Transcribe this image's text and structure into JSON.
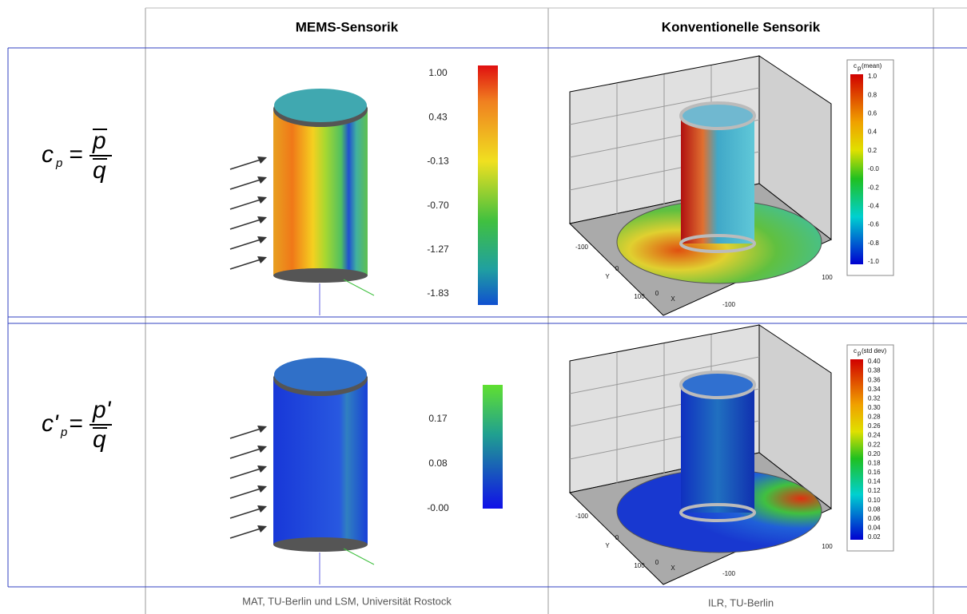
{
  "table": {
    "header": [
      "MEMS-Sensorik",
      "Konventionelle  Sensorik"
    ],
    "rows": [
      {
        "formula": {
          "symbol": "c",
          "sub": "p",
          "equals": "=",
          "numerator": "p",
          "denominator": "q"
        },
        "mems_colorbar": [
          "1.00",
          "0.43",
          "-0.13",
          "-0.70",
          "-1.27",
          "-1.83"
        ],
        "conventional": {
          "colorbar_symbol": "c",
          "colorbar_sub": "p",
          "colorbar_title": "(mean)",
          "colorbar": [
            "1.0",
            "0.8",
            "0.6",
            "0.4",
            "0.2",
            "-0.0",
            "-0.2",
            "-0.4",
            "-0.6",
            "-0.8",
            "-1.0"
          ],
          "axis_labels": [
            "-100",
            "0",
            "Y",
            "100",
            "0",
            "X",
            "-100",
            "100"
          ]
        }
      },
      {
        "formula": {
          "symbol": "c'",
          "sub": "p",
          "equals": "=",
          "numerator": "p'",
          "denominator": "q"
        },
        "mems_colorbar": [
          "0.17",
          "0.08",
          "-0.00"
        ],
        "conventional": {
          "colorbar_symbol": "c",
          "colorbar_sub": "p",
          "colorbar_title": "(std dev)",
          "colorbar": [
            "0.40",
            "0.38",
            "0.36",
            "0.34",
            "0.32",
            "0.30",
            "0.28",
            "0.26",
            "0.24",
            "0.22",
            "0.20",
            "0.18",
            "0.16",
            "0.14",
            "0.12",
            "0.10",
            "0.08",
            "0.06",
            "0.04",
            "0.02"
          ],
          "axis_labels": [
            "-100",
            "0",
            "Y",
            "100",
            "0",
            "X",
            "-100",
            "100"
          ]
        }
      }
    ],
    "footer": [
      "MAT, TU-Berlin und LSM, Universität Rostock",
      "ILR, TU-Berlin"
    ]
  }
}
